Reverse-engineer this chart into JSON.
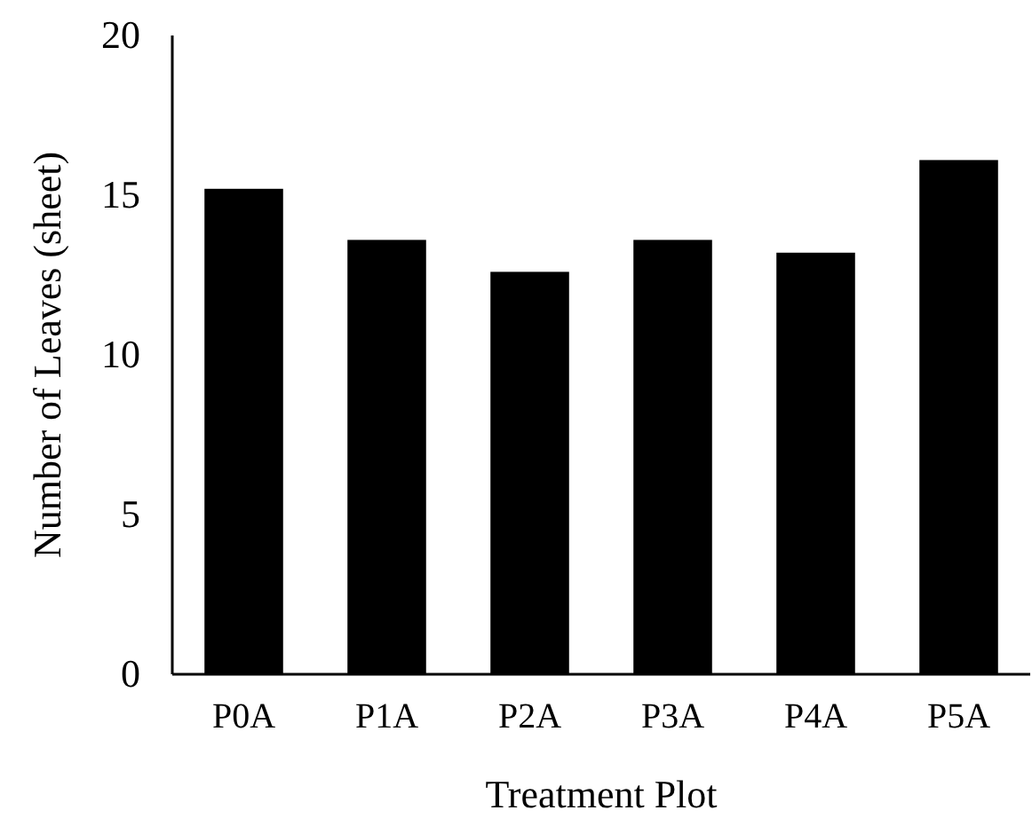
{
  "chart_data": {
    "type": "bar",
    "xlabel": "Treatment Plot",
    "ylabel": "Number of Leaves (sheet)",
    "categories": [
      "P0A",
      "P1A",
      "P2A",
      "P3A",
      "P4A",
      "P5A"
    ],
    "values": [
      15.2,
      13.6,
      12.6,
      13.6,
      13.2,
      16.1
    ],
    "color": "#000000",
    "ylim": [
      0,
      20
    ],
    "yticks": [
      0,
      5,
      10,
      15,
      20
    ],
    "grid": false
  }
}
